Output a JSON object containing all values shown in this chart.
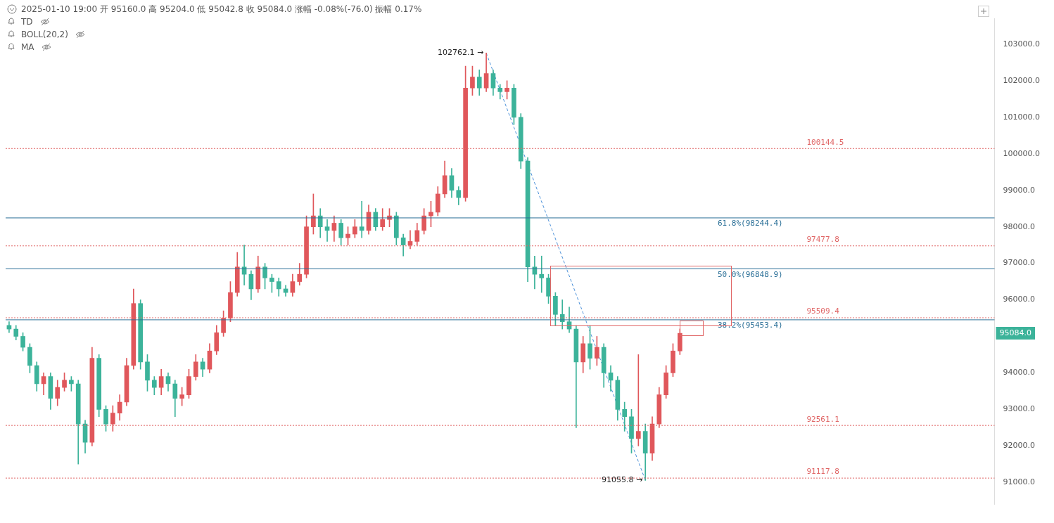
{
  "chart_data": {
    "type": "candlestick",
    "annotations": [
      "2025-01-10 19:00 开 95160.0 高 95204.0 低 95042.8 收 95084.0 涨幅 -0.08%(-76.0) 振幅 0.17%",
      "TD",
      "BOLL(20,2)",
      "MA",
      "102762.1 →",
      "91055.8 →",
      "95084.0"
    ],
    "categories": [
      null,
      null,
      null,
      null,
      null,
      null,
      null,
      null,
      null,
      null,
      null,
      null,
      null,
      null,
      null,
      null,
      null,
      null,
      null,
      null,
      null,
      null,
      null,
      null,
      null,
      null,
      null,
      null,
      null,
      null,
      null,
      null,
      null,
      null,
      null,
      null,
      null,
      null,
      null,
      null,
      null,
      null,
      null,
      null,
      null,
      null,
      null,
      null,
      null,
      null,
      null,
      null,
      null,
      null,
      null,
      null,
      null,
      null,
      null,
      null,
      null,
      null,
      null,
      null,
      null,
      null,
      null,
      null,
      null,
      null,
      null,
      null,
      null,
      null,
      null,
      null,
      null,
      null,
      null,
      null,
      null,
      null,
      null,
      null,
      null,
      null,
      null,
      null,
      null,
      null,
      null,
      null,
      null,
      null,
      null,
      null,
      null,
      null,
      null,
      null,
      null,
      null,
      null,
      null,
      null,
      null,
      null,
      null,
      null,
      null,
      null,
      null,
      null,
      null,
      null,
      null,
      null,
      null,
      null,
      null,
      null,
      null,
      null,
      null,
      null,
      null,
      null,
      null,
      null,
      null,
      null,
      null,
      null,
      null,
      null,
      null,
      null,
      null,
      null,
      null,
      null,
      null,
      null
    ],
    "ohlc": [
      [
        95300,
        95400,
        95100,
        95200
      ],
      [
        95200,
        95300,
        94900,
        95000
      ],
      [
        95000,
        95100,
        94600,
        94700
      ],
      [
        94700,
        94800,
        94000,
        94200
      ],
      [
        94200,
        94300,
        93500,
        93700
      ],
      [
        93700,
        94000,
        93400,
        93900
      ],
      [
        93900,
        94000,
        93000,
        93300
      ],
      [
        93300,
        93800,
        93100,
        93600
      ],
      [
        93600,
        94000,
        93500,
        93800
      ],
      [
        93800,
        93900,
        93500,
        93700
      ],
      [
        93700,
        93800,
        91500,
        92600
      ],
      [
        92600,
        92700,
        91800,
        92100
      ],
      [
        92100,
        94700,
        92000,
        94400
      ],
      [
        94400,
        94500,
        92800,
        93000
      ],
      [
        93000,
        93100,
        92400,
        92600
      ],
      [
        92600,
        93100,
        92400,
        92900
      ],
      [
        92900,
        93400,
        92700,
        93200
      ],
      [
        93200,
        94400,
        93100,
        94200
      ],
      [
        94200,
        96300,
        94100,
        95900
      ],
      [
        95900,
        96000,
        94100,
        94300
      ],
      [
        94300,
        94500,
        93500,
        93800
      ],
      [
        93800,
        93900,
        93400,
        93600
      ],
      [
        93600,
        94100,
        93400,
        93900
      ],
      [
        93900,
        94000,
        93500,
        93700
      ],
      [
        93700,
        93800,
        92800,
        93300
      ],
      [
        93300,
        93600,
        93100,
        93400
      ],
      [
        93400,
        94100,
        93300,
        93900
      ],
      [
        93900,
        94500,
        93800,
        94300
      ],
      [
        94300,
        94400,
        93900,
        94100
      ],
      [
        94100,
        94800,
        94000,
        94600
      ],
      [
        94600,
        95300,
        94500,
        95100
      ],
      [
        95100,
        95700,
        95000,
        95500
      ],
      [
        95500,
        96500,
        95400,
        96200
      ],
      [
        96200,
        97300,
        96100,
        96900
      ],
      [
        96900,
        97500,
        96400,
        96700
      ],
      [
        96700,
        96800,
        96000,
        96300
      ],
      [
        96300,
        97200,
        96200,
        96900
      ],
      [
        96900,
        97000,
        96300,
        96600
      ],
      [
        96600,
        96700,
        96200,
        96500
      ],
      [
        96500,
        96600,
        96100,
        96300
      ],
      [
        96300,
        96400,
        96100,
        96200
      ],
      [
        96200,
        96700,
        96100,
        96500
      ],
      [
        96500,
        97000,
        96400,
        96700
      ],
      [
        96700,
        98300,
        96600,
        98000
      ],
      [
        98000,
        98900,
        97800,
        98300
      ],
      [
        98300,
        98500,
        97700,
        98000
      ],
      [
        98000,
        98200,
        97600,
        97900
      ],
      [
        97900,
        98300,
        97600,
        98100
      ],
      [
        98100,
        98200,
        97500,
        97700
      ],
      [
        97700,
        98000,
        97500,
        97800
      ],
      [
        97800,
        98200,
        97700,
        98000
      ],
      [
        98000,
        98700,
        97700,
        97900
      ],
      [
        97900,
        98600,
        97800,
        98400
      ],
      [
        98400,
        98500,
        97900,
        98000
      ],
      [
        98000,
        98500,
        97900,
        98200
      ],
      [
        98200,
        98500,
        98000,
        98300
      ],
      [
        98300,
        98400,
        97500,
        97700
      ],
      [
        97700,
        97800,
        97200,
        97500
      ],
      [
        97500,
        97900,
        97400,
        97600
      ],
      [
        97600,
        98100,
        97500,
        97900
      ],
      [
        97900,
        98500,
        97800,
        98300
      ],
      [
        98300,
        98700,
        98000,
        98400
      ],
      [
        98400,
        99100,
        98300,
        98900
      ],
      [
        98900,
        99800,
        98800,
        99400
      ],
      [
        99400,
        99600,
        98800,
        99000
      ],
      [
        99000,
        99100,
        98600,
        98800
      ],
      [
        98800,
        102400,
        98700,
        101800
      ],
      [
        101800,
        102400,
        101600,
        102100
      ],
      [
        102100,
        102300,
        101600,
        101800
      ],
      [
        101800,
        102762.1,
        101700,
        102200
      ],
      [
        102200,
        102300,
        101600,
        101800
      ],
      [
        101800,
        101900,
        101500,
        101700
      ],
      [
        101700,
        102000,
        101500,
        101800
      ],
      [
        101800,
        101900,
        100800,
        101000
      ],
      [
        101000,
        101100,
        99600,
        99800
      ],
      [
        99800,
        99900,
        96500,
        96900
      ],
      [
        96900,
        97200,
        96300,
        96700
      ],
      [
        96700,
        97200,
        96200,
        96600
      ],
      [
        96600,
        96700,
        95900,
        96100
      ],
      [
        96100,
        96200,
        95300,
        95600
      ],
      [
        95600,
        96000,
        95200,
        95400
      ],
      [
        95400,
        95800,
        95100,
        95200
      ],
      [
        95200,
        95300,
        92500,
        94300
      ],
      [
        94300,
        95000,
        94000,
        94800
      ],
      [
        94800,
        95300,
        94100,
        94400
      ],
      [
        94400,
        95000,
        94200,
        94700
      ],
      [
        94700,
        94800,
        93600,
        94000
      ],
      [
        94000,
        94200,
        93500,
        93800
      ],
      [
        93800,
        93900,
        92700,
        93000
      ],
      [
        93000,
        93200,
        92400,
        92800
      ],
      [
        92800,
        93000,
        91800,
        92200
      ],
      [
        92200,
        94500,
        92000,
        92400
      ],
      [
        92400,
        92600,
        91055.8,
        91800
      ],
      [
        91800,
        92800,
        91600,
        92600
      ],
      [
        92600,
        93600,
        92500,
        93400
      ],
      [
        93400,
        94200,
        93300,
        94000
      ],
      [
        94000,
        94800,
        93900,
        94600
      ],
      [
        94600,
        95204,
        94500,
        95084
      ],
      null,
      null,
      null,
      null,
      null,
      null,
      null,
      null,
      null,
      null,
      null,
      null,
      null,
      null,
      null,
      null,
      null,
      null,
      null,
      null,
      null,
      null,
      null,
      null,
      null,
      null,
      null,
      null,
      null,
      null,
      null,
      null,
      null,
      null,
      null,
      null,
      null,
      null,
      null,
      null,
      null,
      null,
      null,
      null,
      null
    ],
    "series": [
      {
        "type": "line",
        "color": "#4a90d9",
        "line_style": "dashed",
        "values": [
          null,
          null,
          null,
          null,
          null,
          null,
          null,
          null,
          null,
          null,
          null,
          null,
          null,
          null,
          null,
          null,
          null,
          null,
          null,
          null,
          null,
          null,
          null,
          null,
          null,
          null,
          null,
          null,
          null,
          null,
          null,
          null,
          null,
          null,
          null,
          null,
          null,
          null,
          null,
          null,
          null,
          null,
          null,
          null,
          null,
          null,
          null,
          null,
          null,
          null,
          null,
          null,
          null,
          null,
          null,
          null,
          null,
          null,
          null,
          null,
          null,
          null,
          null,
          null,
          null,
          null,
          null,
          null,
          null,
          102760,
          null,
          null,
          null,
          null,
          null,
          null,
          null,
          null,
          null,
          null,
          null,
          null,
          null,
          null,
          null,
          null,
          null,
          null,
          null,
          null,
          null,
          null,
          91060,
          null,
          null,
          null,
          null,
          null,
          null,
          null,
          null,
          null,
          null,
          null,
          null,
          null,
          null,
          null,
          null,
          null,
          null,
          null,
          null,
          null,
          null,
          null,
          null,
          null,
          null,
          null,
          null,
          null,
          null,
          null,
          null,
          null,
          null,
          null,
          null,
          null,
          null,
          null,
          null,
          null,
          null,
          null,
          null,
          null,
          null,
          null,
          null,
          null,
          null
        ]
      }
    ],
    "ylim": [
      90400,
      103700
    ],
    "yticks": [
      {
        "value": 91000,
        "label": "91000.0"
      },
      {
        "value": 92000,
        "label": "92000.0"
      },
      {
        "value": 93000,
        "label": "93000.0"
      },
      {
        "value": 94000,
        "label": "94000.0"
      },
      {
        "value": 96000,
        "label": "96000.0"
      },
      {
        "value": 97000,
        "label": "97000.0"
      },
      {
        "value": 98000,
        "label": "98000.0"
      },
      {
        "value": 99000,
        "label": "99000.0"
      },
      {
        "value": 100000,
        "label": "100000.0"
      },
      {
        "value": 101000,
        "label": "101000.0"
      },
      {
        "value": 102000,
        "label": "102000.0"
      },
      {
        "value": 103000,
        "label": "103000.0"
      }
    ],
    "tick_labels": "y",
    "ref_lines": [
      {
        "axis": "y",
        "value": 100144.5,
        "label": "100144.5",
        "color": "#e06666",
        "line_style": "dotted"
      },
      {
        "axis": "y",
        "value": 97477.8,
        "label": "97477.8",
        "color": "#e06666",
        "line_style": "dotted"
      },
      {
        "axis": "y",
        "value": 95509.4,
        "label": "95509.4",
        "color": "#e06666",
        "line_style": "dotted"
      },
      {
        "axis": "y",
        "value": 92561.1,
        "label": "92561.1",
        "color": "#e06666",
        "line_style": "dotted"
      },
      {
        "axis": "y",
        "value": 91117.8,
        "label": "91117.8",
        "color": "#e06666",
        "line_style": "dotted"
      },
      {
        "axis": "y",
        "value": 98244.4,
        "label": "61.8%(98244.4)",
        "color": "#2a6f97",
        "line_style": "solid"
      },
      {
        "axis": "y",
        "value": 96848.9,
        "label": "50.0%(96848.9)",
        "color": "#2a6f97",
        "line_style": "solid"
      },
      {
        "axis": "y",
        "value": 95453.4,
        "label": "38.2%(95453.4)",
        "color": "#2a6f97",
        "line_style": "solid"
      }
    ]
  }
}
